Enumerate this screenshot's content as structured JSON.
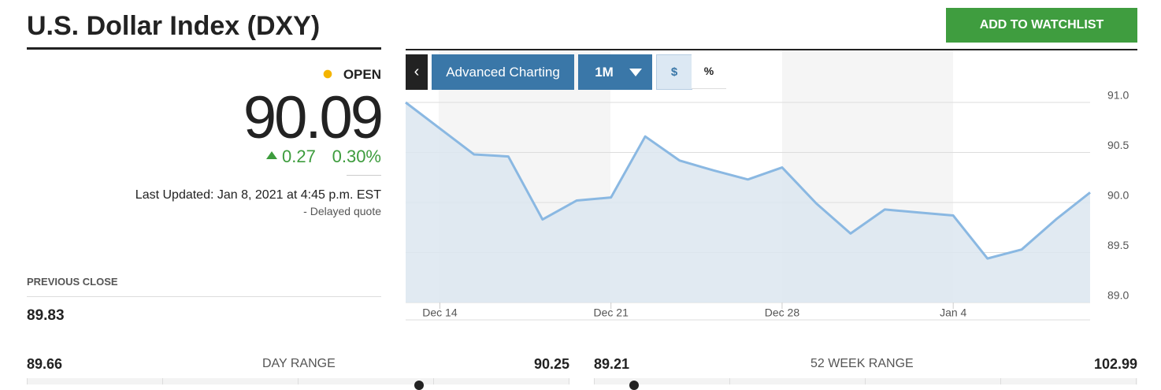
{
  "header": {
    "title": "U.S. Dollar Index (DXY)",
    "button": "ADD TO WATCHLIST"
  },
  "quote": {
    "status": "OPEN",
    "price": "90.09",
    "change": "0.27",
    "change_percent": "0.30%",
    "last_updated": "Last Updated: Jan 8, 2021 at 4:45 p.m. EST",
    "delayed": "-  Delayed quote",
    "previous_close_label": "PREVIOUS CLOSE",
    "previous_close": "89.83"
  },
  "toolbar": {
    "back": "‹",
    "advanced": "Advanced Charting",
    "range": "1M",
    "dollar": "$",
    "percent": "%"
  },
  "ranges": {
    "day": {
      "low": "89.66",
      "label": "DAY RANGE",
      "high": "90.25"
    },
    "week52": {
      "low": "89.21",
      "label": "52 WEEK RANGE",
      "high": "102.99"
    }
  },
  "chart_data": {
    "type": "area",
    "categories": [
      null,
      "Dec 14",
      null,
      null,
      null,
      null,
      "Dec 21",
      null,
      null,
      null,
      null,
      "Dec 28",
      null,
      null,
      null,
      null,
      "Jan 4",
      null,
      null,
      null,
      null
    ],
    "values": [
      91.0,
      90.74,
      90.48,
      90.46,
      89.83,
      90.02,
      90.05,
      90.66,
      90.42,
      90.32,
      90.23,
      90.35,
      89.99,
      89.69,
      89.93,
      89.9,
      89.87,
      89.44,
      89.53,
      89.83,
      90.1
    ],
    "color": "#8ab8e2",
    "fill": "#dce6f0",
    "ylim": [
      89.0,
      91.0
    ],
    "yticks": [
      {
        "value": 89.0,
        "label": "89.0"
      },
      {
        "value": 89.5,
        "label": "89.5"
      },
      {
        "value": 90.0,
        "label": "90.0"
      },
      {
        "value": 90.5,
        "label": "90.5"
      },
      {
        "value": 91.0,
        "label": "91.0"
      }
    ],
    "grid": true
  }
}
